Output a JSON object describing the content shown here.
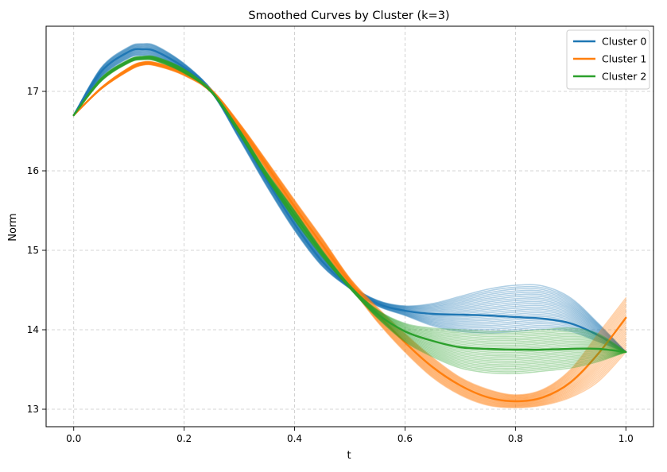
{
  "chart_data": {
    "type": "line",
    "title": "Smoothed Curves by Cluster (k=3)",
    "xlabel": "t",
    "ylabel": "Norm",
    "xlim": [
      -0.05,
      1.05
    ],
    "ylim": [
      12.78,
      17.82
    ],
    "x_ticks": [
      0.0,
      0.2,
      0.4,
      0.6,
      0.8,
      1.0
    ],
    "x_tick_labels": [
      "0.0",
      "0.2",
      "0.4",
      "0.6",
      "0.8",
      "1.0"
    ],
    "y_ticks": [
      13,
      14,
      15,
      16,
      17
    ],
    "y_tick_labels": [
      "13",
      "14",
      "15",
      "16",
      "17"
    ],
    "grid": true,
    "legend_position": "top-right",
    "x": [
      0.0,
      0.05,
      0.1,
      0.125,
      0.15,
      0.2,
      0.25,
      0.3,
      0.35,
      0.4,
      0.45,
      0.5,
      0.55,
      0.6,
      0.65,
      0.7,
      0.75,
      0.8,
      0.85,
      0.9,
      0.95,
      1.0
    ],
    "series": [
      {
        "name": "Cluster 0",
        "color": "#1f77b4",
        "band_count": 25,
        "upper": [
          16.7,
          17.3,
          17.56,
          17.6,
          17.57,
          17.35,
          17.02,
          16.52,
          15.95,
          15.4,
          14.92,
          14.57,
          14.37,
          14.3,
          14.33,
          14.42,
          14.51,
          14.56,
          14.55,
          14.4,
          14.08,
          13.72
        ],
        "lower": [
          16.7,
          17.18,
          17.42,
          17.45,
          17.43,
          17.26,
          16.98,
          16.4,
          15.8,
          15.25,
          14.8,
          14.52,
          14.3,
          14.18,
          14.05,
          13.98,
          13.96,
          13.98,
          14.01,
          13.98,
          13.85,
          13.72
        ],
        "highlight": [
          16.7,
          17.25,
          17.5,
          17.53,
          17.5,
          17.3,
          17.0,
          16.47,
          15.88,
          15.33,
          14.86,
          14.54,
          14.33,
          14.24,
          14.2,
          14.19,
          14.18,
          14.16,
          14.14,
          14.08,
          13.93,
          13.72
        ]
      },
      {
        "name": "Cluster 1",
        "color": "#ff7f0e",
        "band_count": 25,
        "upper": [
          16.7,
          17.05,
          17.3,
          17.37,
          17.36,
          17.25,
          17.02,
          16.6,
          16.12,
          15.63,
          15.15,
          14.65,
          14.28,
          13.95,
          13.65,
          13.4,
          13.25,
          13.18,
          13.25,
          13.5,
          13.95,
          14.4
        ],
        "lower": [
          16.7,
          17.03,
          17.26,
          17.33,
          17.32,
          17.2,
          16.98,
          16.52,
          16.0,
          15.48,
          15.0,
          14.55,
          14.1,
          13.72,
          13.4,
          13.18,
          13.05,
          13.02,
          13.05,
          13.15,
          13.35,
          13.72
        ],
        "highlight": [
          16.7,
          17.04,
          17.28,
          17.35,
          17.34,
          17.22,
          17.0,
          16.56,
          16.06,
          15.55,
          15.07,
          14.6,
          14.2,
          13.84,
          13.53,
          13.3,
          13.15,
          13.1,
          13.15,
          13.34,
          13.7,
          14.15
        ]
      },
      {
        "name": "Cluster 2",
        "color": "#2ca02c",
        "band_count": 25,
        "upper": [
          16.7,
          17.17,
          17.4,
          17.44,
          17.43,
          17.28,
          17.0,
          16.52,
          15.98,
          15.5,
          15.0,
          14.56,
          14.25,
          14.08,
          14.02,
          14.0,
          13.98,
          13.98,
          14.0,
          14.02,
          13.95,
          13.72
        ],
        "lower": [
          16.7,
          17.13,
          17.36,
          17.4,
          17.38,
          17.23,
          16.98,
          16.46,
          15.9,
          15.38,
          14.92,
          14.52,
          14.15,
          13.85,
          13.66,
          13.52,
          13.46,
          13.45,
          13.48,
          13.52,
          13.6,
          13.72
        ],
        "highlight": [
          16.7,
          17.15,
          17.38,
          17.42,
          17.41,
          17.26,
          17.0,
          16.5,
          15.95,
          15.44,
          14.96,
          14.54,
          14.2,
          13.98,
          13.86,
          13.78,
          13.76,
          13.75,
          13.75,
          13.76,
          13.76,
          13.72
        ]
      }
    ]
  }
}
